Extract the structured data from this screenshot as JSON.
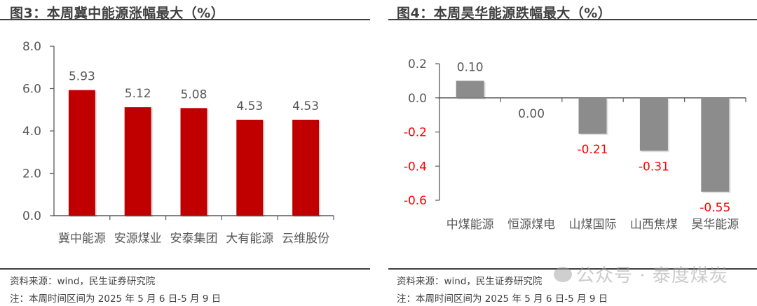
{
  "left": {
    "title": "图3：本周冀中能源涨幅最大（%）",
    "source": "资料来源：wind，民生证券研究院",
    "note": "注：本周时间区间为 2025 年 5 月 6 日-5 月 9 日"
  },
  "right": {
    "title": "图4：本周昊华能源跌幅最大（%）",
    "source": "资料来源：wind，民生证券研究院",
    "note": "注：本周时间区间为 2025 年 5 月 6 日-5 月 9 日"
  },
  "watermark": "公众号 · 泰度煤炭",
  "colors": {
    "left_bar": "#C00000",
    "right_bar": "#8C8C8C",
    "negative_label": "#FF0000",
    "axis": "#595959",
    "text": "#595959"
  },
  "chart_data": [
    {
      "type": "bar",
      "title": "图3：本周冀中能源涨幅最大（%）",
      "categories": [
        "冀中能源",
        "安源煤业",
        "安泰集团",
        "大有能源",
        "云维股份"
      ],
      "values": [
        5.93,
        5.12,
        5.08,
        4.53,
        4.53
      ],
      "value_labels": [
        "5.93",
        "5.12",
        "5.08",
        "4.53",
        "4.53"
      ],
      "xlabel": "",
      "ylabel": "",
      "ylim": [
        0,
        8
      ],
      "yticks": [
        "0.0",
        "2.0",
        "4.0",
        "6.0",
        "8.0"
      ],
      "grid": false,
      "legend": null,
      "bar_color": "#C00000"
    },
    {
      "type": "bar",
      "title": "图4：本周昊华能源跌幅最大（%）",
      "categories": [
        "中煤能源",
        "恒源煤电",
        "山煤国际",
        "山西焦煤",
        "昊华能源"
      ],
      "values": [
        0.1,
        0.0,
        -0.21,
        -0.31,
        -0.55
      ],
      "value_labels": [
        "0.10",
        "0.00",
        "-0.21",
        "-0.31",
        "-0.55"
      ],
      "xlabel": "",
      "ylabel": "",
      "ylim": [
        -0.6,
        0.2
      ],
      "yticks": [
        "-0.6",
        "-0.4",
        "-0.2",
        "0.0",
        "0.2"
      ],
      "grid": false,
      "legend": null,
      "bar_color": "#8C8C8C"
    }
  ]
}
